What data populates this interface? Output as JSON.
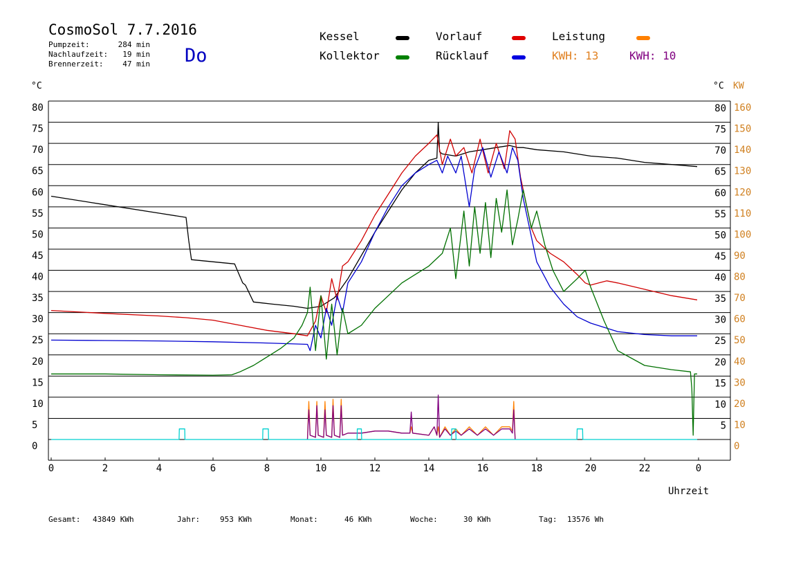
{
  "header": {
    "title": "CosmoSol 7.7.2016",
    "day": "Do",
    "stats": [
      {
        "label": "Pumpzeit:",
        "value": "284 min"
      },
      {
        "label": "Nachlaufzeit:",
        "value": "19 min"
      },
      {
        "label": "Brennerzeit:",
        "value": "47 min"
      }
    ]
  },
  "legend": [
    {
      "label": "Kessel",
      "color": "#000000"
    },
    {
      "label": "Vorlauf",
      "color": "#e00000"
    },
    {
      "label": "Leistung",
      "color": "#ff8000"
    },
    {
      "label": "Kollektor",
      "color": "#008000"
    },
    {
      "label": "Rücklauf",
      "color": "#0000e0"
    }
  ],
  "kwh": [
    {
      "text": "KWH: 13",
      "color": "#e08020"
    },
    {
      "text": "KWH: 10",
      "color": "#800080"
    }
  ],
  "footer": [
    {
      "label": "Gesamt:",
      "value": "43849 KWh"
    },
    {
      "label": "Jahr:",
      "value": "953 KWh"
    },
    {
      "label": "Monat:",
      "value": "46 KWh"
    },
    {
      "label": "Woche:",
      "value": "30 KWh"
    },
    {
      "label": "Tag:",
      "value": "13576 Wh"
    }
  ],
  "chart_data": {
    "type": "line",
    "xlabel": "Uhrzeit",
    "y_left_unit": "°C",
    "y_right_unit": "°C",
    "y_right2_unit": "KW",
    "xlim": [
      0,
      24
    ],
    "ylim": [
      0,
      80
    ],
    "x_ticks": [
      "0",
      "2",
      "4",
      "6",
      "8",
      "10",
      "12",
      "14",
      "16",
      "18",
      "20",
      "22",
      "0"
    ],
    "y_left_ticks": [
      "80",
      "75",
      "70",
      "65",
      "60",
      "55",
      "50",
      "45",
      "40",
      "35",
      "30",
      "25",
      "20",
      "15",
      "10",
      "5",
      "0"
    ],
    "y_right_ticks": [
      "80",
      "75",
      "70",
      "65",
      "60",
      "55",
      "50",
      "45",
      "40",
      "35",
      "30",
      "25",
      "20",
      "15",
      "10",
      "5"
    ],
    "kw_ticks": [
      "160",
      "150",
      "140",
      "130",
      "120",
      "110",
      "100",
      "90",
      "80",
      "70",
      "60",
      "50",
      "40",
      "30",
      "20",
      "10",
      "0"
    ],
    "colors": {
      "Kessel": "#000000",
      "Vorlauf": "#d00000",
      "Rücklauf": "#0000d0",
      "Kollektor": "#007000",
      "Leistung": "#ff8000",
      "KWH2": "#800080",
      "pump": "#00d0d0"
    },
    "series": [
      {
        "name": "Kessel",
        "x": [
          0,
          2,
          4,
          5.0,
          5.1,
          5.2,
          6.8,
          6.9,
          7.1,
          7.2,
          7.5,
          8.2,
          9.0,
          9.5,
          10.0,
          10.5,
          11,
          12,
          13,
          13.5,
          14.0,
          14.3,
          14.35,
          14.4,
          14.5,
          15.0,
          15.5,
          16.0,
          16.5,
          17.0,
          17.3,
          17.5,
          18,
          19,
          20,
          21,
          22,
          23,
          23.95
        ],
        "y": [
          57.5,
          55.5,
          53.5,
          52.5,
          47,
          42.5,
          41.5,
          40,
          37,
          36.5,
          32.5,
          32,
          31.5,
          31,
          31.5,
          33.5,
          38,
          49,
          59,
          63,
          66,
          66.5,
          75,
          68,
          67.5,
          67,
          68,
          68.5,
          69,
          69.5,
          69,
          69,
          68.5,
          68,
          67,
          66.5,
          65.5,
          65,
          64.5
        ]
      },
      {
        "name": "Vorlauf",
        "x": [
          0,
          2,
          4,
          5,
          6,
          7,
          8,
          9,
          9.5,
          9.8,
          10.0,
          10.2,
          10.4,
          10.6,
          10.8,
          11.0,
          11.5,
          12.0,
          12.5,
          13.0,
          13.5,
          14.0,
          14.3,
          14.5,
          14.8,
          15.0,
          15.3,
          15.6,
          15.9,
          16.2,
          16.5,
          16.8,
          17.0,
          17.2,
          17.4,
          17.6,
          17.8,
          18.0,
          18.5,
          19.0,
          19.5,
          19.8,
          20.0,
          20.3,
          20.6,
          21,
          22,
          23,
          23.95
        ],
        "y": [
          30.5,
          29.8,
          29.2,
          28.8,
          28.2,
          27,
          25.8,
          25,
          24.5,
          28,
          34,
          30,
          38,
          33,
          41,
          42,
          47,
          53,
          58,
          63,
          67,
          70,
          72,
          65,
          71,
          67,
          69,
          63,
          71,
          63,
          70,
          64,
          73,
          71,
          62,
          56,
          50,
          47,
          44,
          42,
          39,
          37,
          36.5,
          37,
          37.5,
          37,
          35.5,
          34,
          33
        ]
      },
      {
        "name": "Rücklauf",
        "x": [
          0,
          2,
          4,
          6,
          8,
          9.5,
          9.6,
          9.8,
          10.0,
          10.2,
          10.4,
          10.6,
          10.8,
          11,
          11.5,
          12,
          12.5,
          13,
          13.5,
          14.0,
          14.3,
          14.5,
          14.7,
          15.0,
          15.2,
          15.5,
          15.7,
          16.0,
          16.3,
          16.6,
          16.9,
          17.1,
          17.3,
          17.5,
          17.8,
          18.0,
          18.5,
          19.0,
          19.5,
          20.0,
          20.5,
          21,
          22,
          23,
          23.95
        ],
        "y": [
          23.5,
          23.4,
          23.3,
          23.1,
          22.8,
          22.5,
          21,
          27,
          24,
          31,
          27,
          34,
          30,
          37,
          42,
          49,
          55,
          60,
          63,
          65,
          66,
          63,
          67,
          63,
          67,
          55,
          64,
          69,
          62,
          68,
          63,
          69,
          66,
          57,
          48,
          42,
          36,
          32,
          29,
          27.5,
          26.5,
          25.5,
          24.8,
          24.5,
          24.5
        ]
      },
      {
        "name": "Kollektor",
        "x": [
          0,
          2,
          4,
          6,
          6.7,
          7.0,
          7.5,
          8,
          8.5,
          9.0,
          9.3,
          9.5,
          9.6,
          9.8,
          10.0,
          10.2,
          10.4,
          10.6,
          10.8,
          11.0,
          11.5,
          12.0,
          12.5,
          13,
          13.5,
          14,
          14.5,
          14.8,
          15.0,
          15.3,
          15.5,
          15.7,
          15.9,
          16.1,
          16.3,
          16.5,
          16.7,
          16.9,
          17.1,
          17.3,
          17.5,
          17.8,
          18.0,
          18.3,
          18.6,
          19.0,
          19.5,
          19.8,
          20.0,
          20.5,
          21,
          22,
          23,
          23.7,
          23.75,
          23.8,
          23.85,
          23.9,
          23.95
        ],
        "y": [
          15.5,
          15.5,
          15.3,
          15.2,
          15.3,
          16,
          17.5,
          19.5,
          21.5,
          24,
          27,
          30,
          36,
          21,
          34,
          19,
          32,
          20,
          31,
          25,
          27,
          31,
          34,
          37,
          39,
          41,
          44,
          50,
          38,
          54,
          41,
          55,
          44,
          56,
          43,
          57,
          49,
          59,
          46,
          52,
          59,
          50,
          54,
          46,
          40,
          35,
          38,
          40,
          36,
          28,
          21,
          17.5,
          16.5,
          16,
          12,
          1,
          15.5,
          15.5,
          15.5
        ]
      },
      {
        "name": "Leistung",
        "x": [
          9.5,
          9.55,
          9.6,
          9.8,
          9.85,
          9.9,
          10.1,
          10.15,
          10.2,
          10.4,
          10.45,
          10.5,
          10.7,
          10.75,
          10.8,
          11.0,
          11.5,
          12.0,
          12.5,
          13.0,
          13.3,
          13.35,
          13.4,
          14.0,
          14.2,
          14.3,
          14.35,
          14.4,
          14.6,
          14.8,
          15.0,
          15.2,
          15.5,
          15.8,
          16.1,
          16.4,
          16.7,
          17.0,
          17.1,
          17.15,
          17.2
        ],
        "y": [
          0,
          9,
          1,
          0.5,
          9,
          1,
          0.5,
          9,
          1,
          0.5,
          9.5,
          1,
          0.5,
          9.5,
          1,
          1.5,
          1.5,
          2,
          2,
          1.5,
          1.5,
          3,
          1.5,
          1,
          3,
          1,
          3,
          0.5,
          3,
          1,
          2.5,
          1,
          3,
          1,
          3,
          1,
          3,
          3,
          2,
          9,
          0
        ]
      },
      {
        "name": "KWH2",
        "x": [
          9.5,
          9.55,
          9.6,
          9.8,
          9.85,
          9.9,
          10.1,
          10.15,
          10.2,
          10.4,
          10.45,
          10.5,
          10.7,
          10.75,
          10.8,
          11.0,
          11.5,
          12.0,
          12.5,
          13.0,
          13.3,
          13.35,
          13.4,
          14.0,
          14.2,
          14.3,
          14.35,
          14.4,
          14.6,
          14.8,
          15.0,
          15.2,
          15.5,
          15.8,
          16.1,
          16.4,
          16.7,
          17.0,
          17.1,
          17.15,
          17.2
        ],
        "y": [
          0,
          7,
          1,
          0.5,
          8,
          1,
          0.5,
          7,
          1,
          0.5,
          8,
          1,
          0.5,
          8,
          1,
          1.5,
          1.5,
          2,
          2,
          1.5,
          1.5,
          6.5,
          1.5,
          1,
          3,
          1,
          10.5,
          0.5,
          2.5,
          1,
          2,
          1,
          2.5,
          1,
          2.5,
          1,
          2.5,
          2.5,
          1.5,
          7,
          0
        ]
      },
      {
        "name": "Pumpe",
        "x": [
          0,
          4.74,
          4.75,
          4.95,
          4.96,
          7.84,
          7.85,
          8.05,
          8.06,
          11.34,
          11.35,
          11.5,
          11.51,
          14.84,
          14.85,
          15.0,
          15.01,
          19.49,
          19.5,
          19.7,
          19.71,
          23.95
        ],
        "y": [
          0,
          0,
          2.5,
          2.5,
          0,
          0,
          2.5,
          2.5,
          0,
          0,
          2.5,
          2.5,
          0,
          0,
          2.5,
          2.5,
          0,
          0,
          2.5,
          2.5,
          0,
          0
        ]
      }
    ]
  }
}
